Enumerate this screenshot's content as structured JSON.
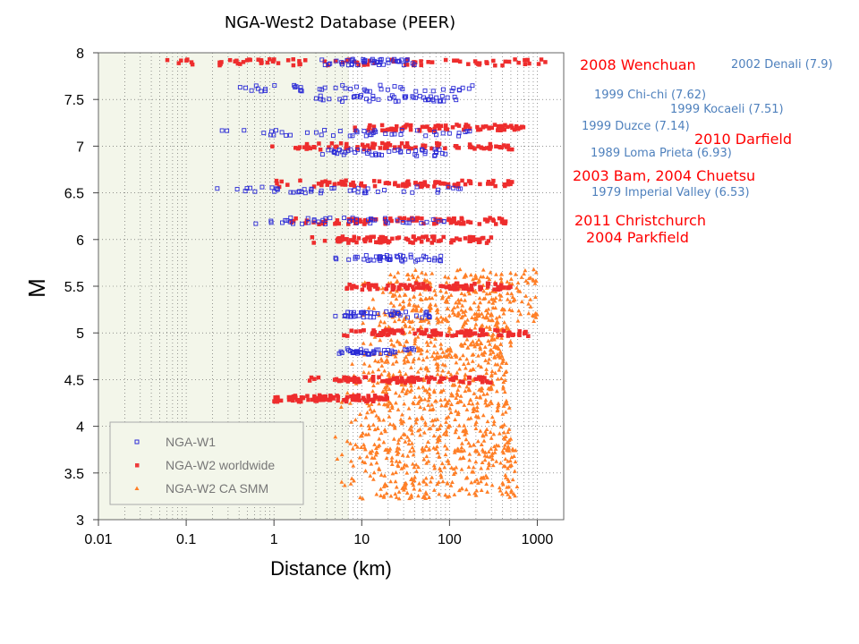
{
  "title": "NGA-West2 Database (PEER)",
  "chart_data": {
    "type": "scatter",
    "xlabel": "Distance (km)",
    "ylabel": "M",
    "xscale": "log",
    "xlim": [
      0.01,
      2000
    ],
    "ylim": [
      3,
      8
    ],
    "xticks": [
      "0.01",
      "0.1",
      "1",
      "10",
      "100",
      "1000"
    ],
    "yticks": [
      "3",
      "3.5",
      "4",
      "4.5",
      "5",
      "5.5",
      "6",
      "6.5",
      "7",
      "7.5",
      "8"
    ],
    "grid": true,
    "legend_position": "bottom-left",
    "legend": [
      {
        "name": "NGA-W1",
        "color": "#2b2bd6",
        "marker": "square"
      },
      {
        "name": "NGA-W2 worldwide",
        "color": "#ee3b3b",
        "marker": "filled-square"
      },
      {
        "name": "NGA-W2 CA SMM",
        "color": "#ff7f27",
        "marker": "triangle"
      }
    ],
    "series": [
      {
        "name": "NGA-W1",
        "clusters": [
          {
            "m": 7.9,
            "d_min": 3,
            "d_max": 40
          },
          {
            "m": 7.62,
            "d_min": 0.3,
            "d_max": 200
          },
          {
            "m": 7.51,
            "d_min": 3,
            "d_max": 120
          },
          {
            "m": 7.14,
            "d_min": 0.2,
            "d_max": 180
          },
          {
            "m": 6.93,
            "d_min": 3,
            "d_max": 100
          },
          {
            "m": 6.53,
            "d_min": 0.07,
            "d_max": 150
          },
          {
            "m": 6.2,
            "d_min": 0.6,
            "d_max": 100
          },
          {
            "m": 5.8,
            "d_min": 5,
            "d_max": 80
          },
          {
            "m": 5.2,
            "d_min": 5,
            "d_max": 60
          },
          {
            "m": 4.8,
            "d_min": 5,
            "d_max": 40
          }
        ]
      },
      {
        "name": "NGA-W2 worldwide",
        "clusters": [
          {
            "m": 7.9,
            "d_min": 0.05,
            "d_max": 1500
          },
          {
            "m": 7.2,
            "d_min": 8,
            "d_max": 700
          },
          {
            "m": 7.0,
            "d_min": 0.7,
            "d_max": 550
          },
          {
            "m": 6.6,
            "d_min": 1,
            "d_max": 600
          },
          {
            "m": 6.2,
            "d_min": 1.5,
            "d_max": 450
          },
          {
            "m": 6.0,
            "d_min": 2.5,
            "d_max": 300
          },
          {
            "m": 5.5,
            "d_min": 6,
            "d_max": 500
          },
          {
            "m": 5.0,
            "d_min": 6,
            "d_max": 900
          },
          {
            "m": 4.5,
            "d_min": 2.5,
            "d_max": 300
          },
          {
            "m": 4.3,
            "d_min": 1,
            "d_max": 20
          }
        ]
      },
      {
        "name": "NGA-W2 CA SMM",
        "clusters": [
          {
            "m": 3.5,
            "d_min": 5,
            "d_max": 600
          },
          {
            "m": 4.0,
            "d_min": 5,
            "d_max": 500
          },
          {
            "m": 4.5,
            "d_min": 6,
            "d_max": 450
          },
          {
            "m": 5.0,
            "d_min": 10,
            "d_max": 500
          },
          {
            "m": 5.4,
            "d_min": 10,
            "d_max": 1000
          }
        ]
      }
    ],
    "annotations": [
      {
        "text": "2008 Wenchuan",
        "style": "big"
      },
      {
        "text": "2002 Denali (7.9)",
        "style": "small"
      },
      {
        "text": "1999 Chi-chi (7.62)",
        "style": "small"
      },
      {
        "text": "1999 Kocaeli (7.51)",
        "style": "small"
      },
      {
        "text": "1999 Duzce (7.14)",
        "style": "small"
      },
      {
        "text": "2010 Darfield",
        "style": "big"
      },
      {
        "text": "1989 Loma Prieta (6.93)",
        "style": "small"
      },
      {
        "text": "2003 Bam, 2004 Chuetsu",
        "style": "big"
      },
      {
        "text": "1979 Imperial Valley (6.53)",
        "style": "small"
      },
      {
        "text": "2011 Christchurch",
        "style": "big"
      },
      {
        "text": "2004 Parkfield",
        "style": "big"
      }
    ]
  }
}
